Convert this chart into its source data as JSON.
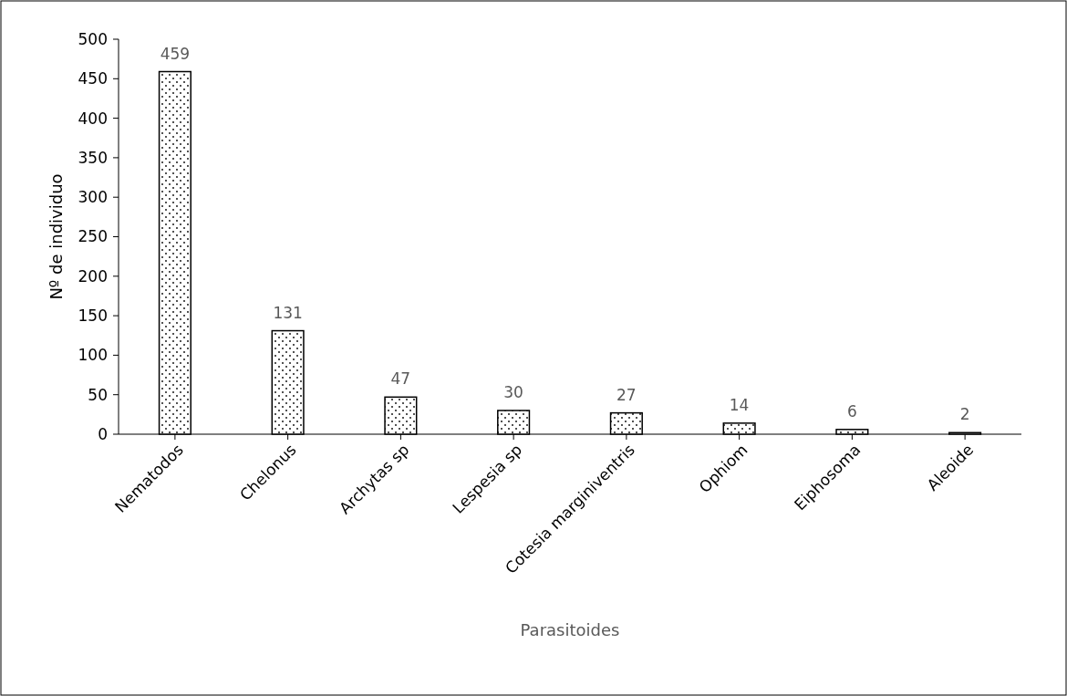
{
  "chart_data": {
    "type": "bar",
    "xlabel": "Parasitoides",
    "ylabel": "Nº de individuo",
    "categories": [
      "Nematodos",
      "Chelonus",
      "Archytas sp",
      "Lespesia sp",
      "Cotesia marginiventris",
      "Ophiom",
      "Eiphosoma",
      "Aleoide"
    ],
    "values": [
      459,
      131,
      47,
      30,
      27,
      14,
      6,
      2
    ],
    "color": "#000000",
    "ylim": [
      0,
      500
    ],
    "yticks": [
      0,
      50,
      100,
      150,
      200,
      250,
      300,
      350,
      400,
      450,
      500
    ],
    "data_labels": true,
    "grid": false
  }
}
